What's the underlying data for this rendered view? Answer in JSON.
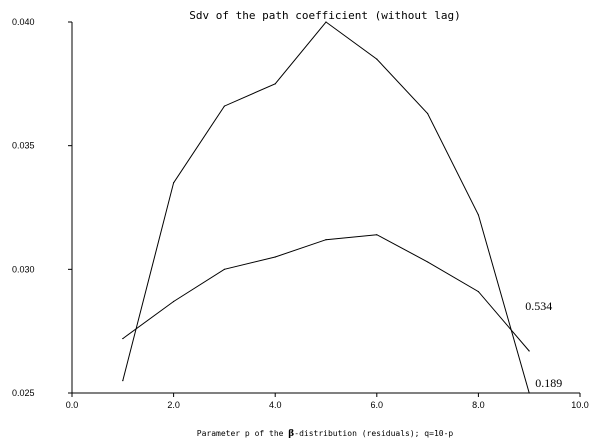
{
  "chart_data": {
    "type": "line",
    "title": "Sdv of the path coefficient (without lag)",
    "xlabel_prefix": "Parameter p of the ",
    "xlabel_symbol": "β",
    "xlabel_suffix": "-distribution (residuals); q=10-p",
    "ylabel": "",
    "xlim": [
      0.0,
      10.0
    ],
    "ylim": [
      0.025,
      0.04
    ],
    "x_ticks": [
      {
        "value": 0,
        "label": "0.0"
      },
      {
        "value": 2,
        "label": "2.0"
      },
      {
        "value": 4,
        "label": "4.0"
      },
      {
        "value": 6,
        "label": "6.0"
      },
      {
        "value": 8,
        "label": "8.0"
      },
      {
        "value": 10,
        "label": "10.0"
      }
    ],
    "y_ticks": [
      {
        "value": 0.025,
        "label": "0.025"
      },
      {
        "value": 0.03,
        "label": "0.030"
      },
      {
        "value": 0.035,
        "label": "0.035"
      },
      {
        "value": 0.04,
        "label": "0.040"
      }
    ],
    "series": [
      {
        "end_label": "0.189",
        "x": [
          1,
          2,
          3,
          4,
          5,
          6,
          7,
          8,
          9
        ],
        "values": [
          0.0255,
          0.0335,
          0.0366,
          0.0375,
          0.04,
          0.0385,
          0.0363,
          0.0322,
          0.025
        ]
      },
      {
        "end_label": "0.534",
        "x": [
          1,
          2,
          3,
          4,
          5,
          6,
          7,
          8,
          9
        ],
        "values": [
          0.0272,
          0.0287,
          0.03,
          0.0305,
          0.0312,
          0.0314,
          0.0303,
          0.0291,
          0.0267
        ]
      }
    ]
  }
}
